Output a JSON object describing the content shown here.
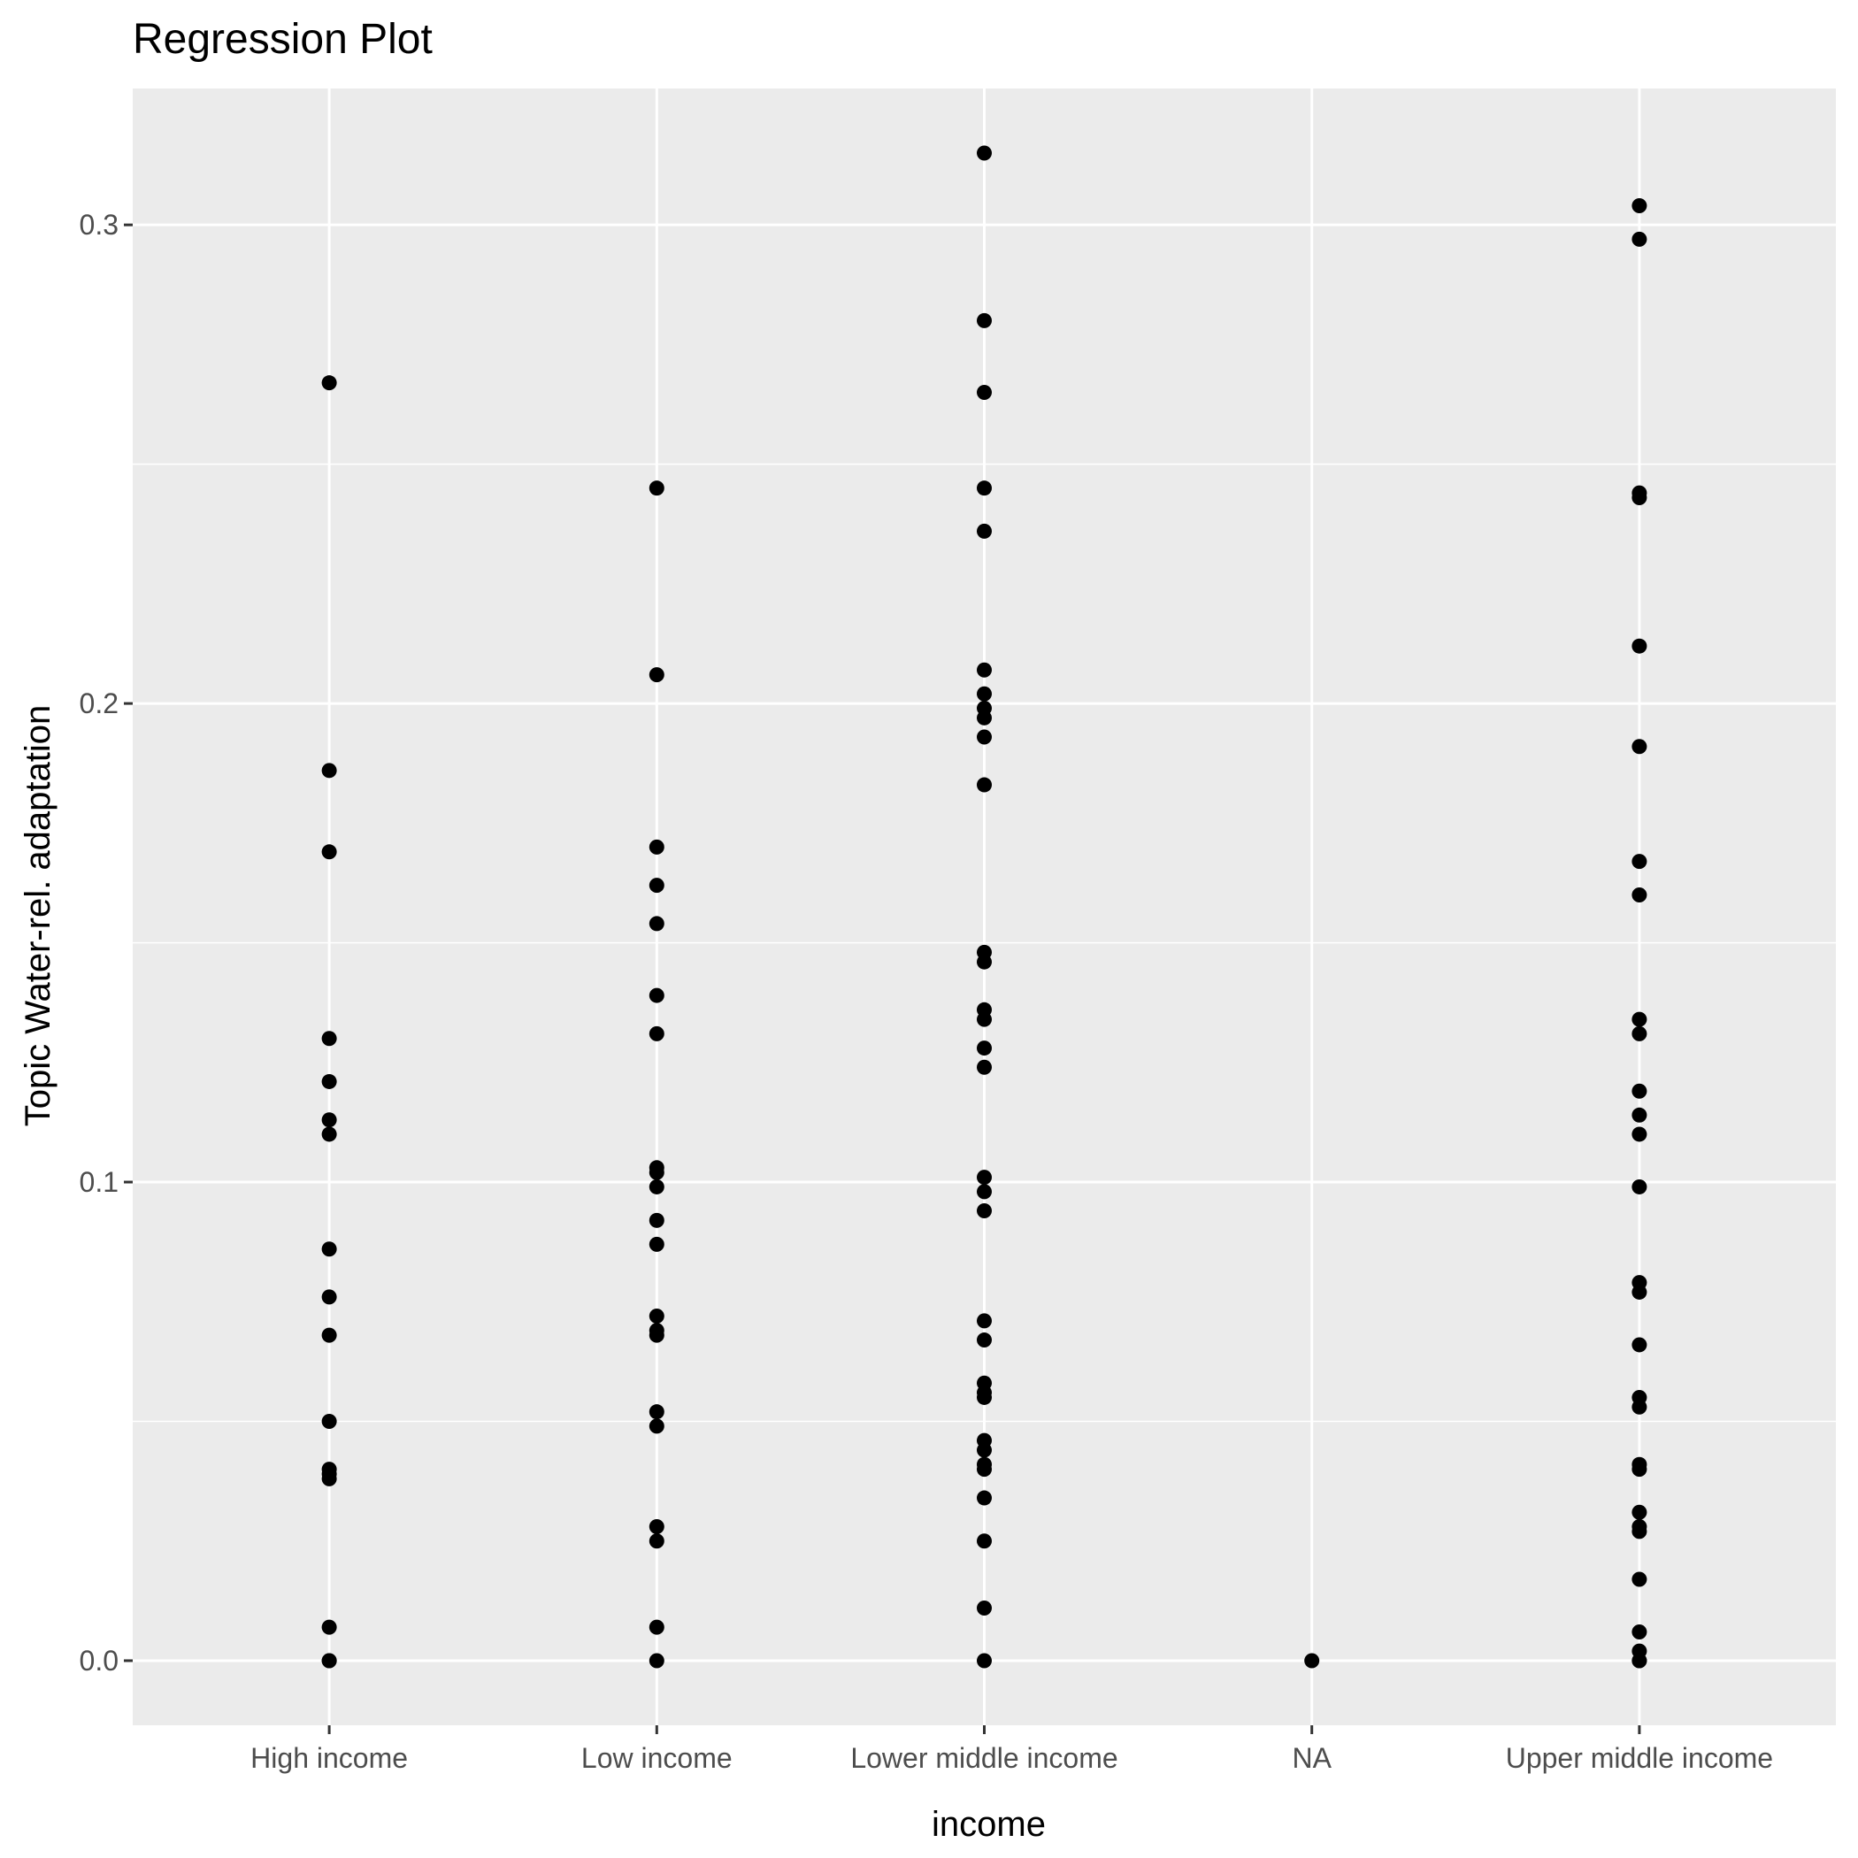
{
  "chart_data": {
    "type": "scatter",
    "title": "Regression Plot",
    "xlabel": "income",
    "ylabel": "Topic Water-rel. adaptation",
    "categories": [
      "High income",
      "Low income",
      "Lower middle income",
      "NA",
      "Upper middle income"
    ],
    "y_ticks": [
      0.0,
      0.1,
      0.2,
      0.3
    ],
    "y_tick_labels": [
      "0.0",
      "0.1",
      "0.2",
      "0.3"
    ],
    "ylim": [
      -0.0135,
      0.3285
    ],
    "grid": true,
    "legend": "none",
    "point_color": "#000000",
    "panel_background": "#ebebeb",
    "gridline_color": "#ffffff",
    "series": [
      {
        "values": [
          [
            "High income",
            0.267
          ],
          [
            "High income",
            0.186
          ],
          [
            "High income",
            0.169
          ],
          [
            "High income",
            0.13
          ],
          [
            "High income",
            0.121
          ],
          [
            "High income",
            0.113
          ],
          [
            "High income",
            0.11
          ],
          [
            "High income",
            0.086
          ],
          [
            "High income",
            0.076
          ],
          [
            "High income",
            0.068
          ],
          [
            "High income",
            0.05
          ],
          [
            "High income",
            0.04
          ],
          [
            "High income",
            0.039
          ],
          [
            "High income",
            0.038
          ],
          [
            "High income",
            0.007
          ],
          [
            "High income",
            0.0
          ],
          [
            "High income",
            0.0
          ],
          [
            "Low income",
            0.245
          ],
          [
            "Low income",
            0.206
          ],
          [
            "Low income",
            0.17
          ],
          [
            "Low income",
            0.162
          ],
          [
            "Low income",
            0.154
          ],
          [
            "Low income",
            0.139
          ],
          [
            "Low income",
            0.131
          ],
          [
            "Low income",
            0.103
          ],
          [
            "Low income",
            0.102
          ],
          [
            "Low income",
            0.099
          ],
          [
            "Low income",
            0.092
          ],
          [
            "Low income",
            0.087
          ],
          [
            "Low income",
            0.072
          ],
          [
            "Low income",
            0.069
          ],
          [
            "Low income",
            0.068
          ],
          [
            "Low income",
            0.052
          ],
          [
            "Low income",
            0.049
          ],
          [
            "Low income",
            0.028
          ],
          [
            "Low income",
            0.025
          ],
          [
            "Low income",
            0.007
          ],
          [
            "Low income",
            0.0
          ],
          [
            "Lower middle income",
            0.315
          ],
          [
            "Lower middle income",
            0.28
          ],
          [
            "Lower middle income",
            0.265
          ],
          [
            "Lower middle income",
            0.245
          ],
          [
            "Lower middle income",
            0.236
          ],
          [
            "Lower middle income",
            0.207
          ],
          [
            "Lower middle income",
            0.202
          ],
          [
            "Lower middle income",
            0.199
          ],
          [
            "Lower middle income",
            0.197
          ],
          [
            "Lower middle income",
            0.193
          ],
          [
            "Lower middle income",
            0.183
          ],
          [
            "Lower middle income",
            0.148
          ],
          [
            "Lower middle income",
            0.146
          ],
          [
            "Lower middle income",
            0.136
          ],
          [
            "Lower middle income",
            0.134
          ],
          [
            "Lower middle income",
            0.128
          ],
          [
            "Lower middle income",
            0.124
          ],
          [
            "Lower middle income",
            0.101
          ],
          [
            "Lower middle income",
            0.098
          ],
          [
            "Lower middle income",
            0.094
          ],
          [
            "Lower middle income",
            0.071
          ],
          [
            "Lower middle income",
            0.067
          ],
          [
            "Lower middle income",
            0.058
          ],
          [
            "Lower middle income",
            0.056
          ],
          [
            "Lower middle income",
            0.055
          ],
          [
            "Lower middle income",
            0.046
          ],
          [
            "Lower middle income",
            0.044
          ],
          [
            "Lower middle income",
            0.041
          ],
          [
            "Lower middle income",
            0.04
          ],
          [
            "Lower middle income",
            0.034
          ],
          [
            "Lower middle income",
            0.025
          ],
          [
            "Lower middle income",
            0.011
          ],
          [
            "Lower middle income",
            0.0
          ],
          [
            "NA",
            0.0
          ],
          [
            "Upper middle income",
            0.304
          ],
          [
            "Upper middle income",
            0.297
          ],
          [
            "Upper middle income",
            0.244
          ],
          [
            "Upper middle income",
            0.243
          ],
          [
            "Upper middle income",
            0.212
          ],
          [
            "Upper middle income",
            0.191
          ],
          [
            "Upper middle income",
            0.167
          ],
          [
            "Upper middle income",
            0.16
          ],
          [
            "Upper middle income",
            0.134
          ],
          [
            "Upper middle income",
            0.131
          ],
          [
            "Upper middle income",
            0.119
          ],
          [
            "Upper middle income",
            0.114
          ],
          [
            "Upper middle income",
            0.11
          ],
          [
            "Upper middle income",
            0.099
          ],
          [
            "Upper middle income",
            0.079
          ],
          [
            "Upper middle income",
            0.077
          ],
          [
            "Upper middle income",
            0.066
          ],
          [
            "Upper middle income",
            0.055
          ],
          [
            "Upper middle income",
            0.053
          ],
          [
            "Upper middle income",
            0.041
          ],
          [
            "Upper middle income",
            0.04
          ],
          [
            "Upper middle income",
            0.031
          ],
          [
            "Upper middle income",
            0.028
          ],
          [
            "Upper middle income",
            0.027
          ],
          [
            "Upper middle income",
            0.017
          ],
          [
            "Upper middle income",
            0.006
          ],
          [
            "Upper middle income",
            0.002
          ],
          [
            "Upper middle income",
            0.0
          ],
          [
            "Upper middle income",
            0.0
          ]
        ]
      }
    ]
  }
}
